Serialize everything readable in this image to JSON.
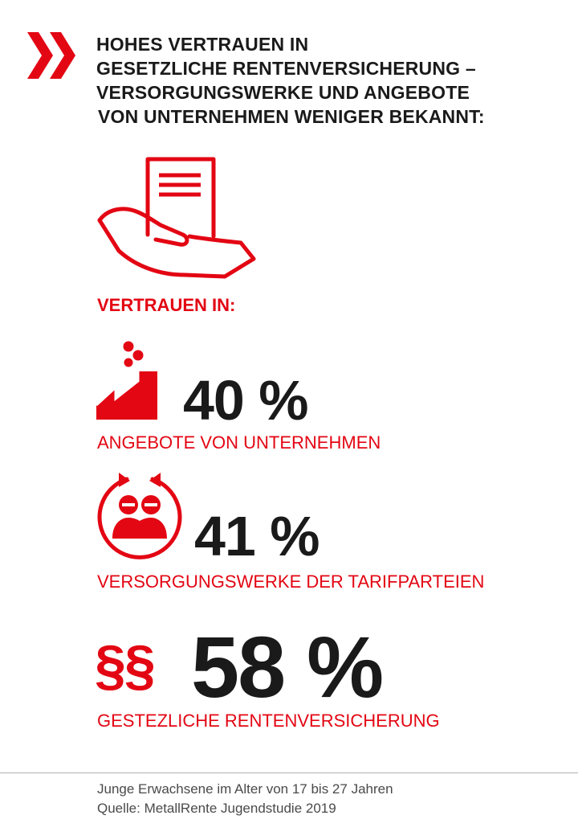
{
  "colors": {
    "accent": "#e30613",
    "text": "#1a1a1a",
    "footer_text": "#4a4a4a",
    "divider": "#b0b0b0"
  },
  "icons": {
    "header": "double-chevron-right-icon",
    "hero": "hand-holding-document-icon",
    "companies": "factory-icon",
    "collective_funds": "people-cycle-icon",
    "statutory": "paragraph-icon"
  },
  "headline": {
    "line1": "HOHES VERTRAUEN IN",
    "line2": "GESETZLICHE RENTENVERSICHERUNG –",
    "line3": "VERSORGUNGSWERKE UND ANGEBOTE",
    "line4": "VON UNTERNEHMEN WENIGER BEKANNT:"
  },
  "trust_label": "VERTRAUEN IN:",
  "items": [
    {
      "value": "40 %",
      "caption": "ANGEBOTE VON UNTERNEHMEN"
    },
    {
      "value": "41 %",
      "caption": "VERSORGUNGSWERKE DER TARIFPARTEIEN"
    },
    {
      "value": "58 %",
      "caption": "GESTEZLICHE RENTENVERSICHERUNG",
      "symbol": "§§"
    }
  ],
  "footer": {
    "line1": "Junge Erwachsene im Alter von 17 bis 27 Jahren",
    "line2": "Quelle: MetallRente Jugendstudie 2019"
  }
}
